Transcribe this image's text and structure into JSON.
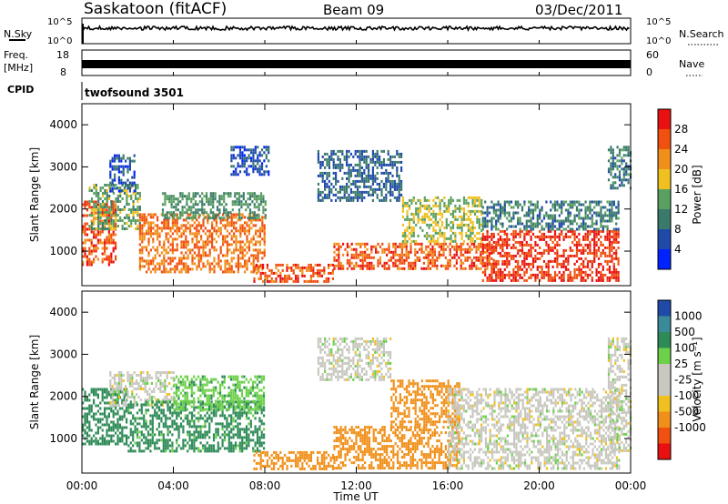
{
  "header": {
    "station": "Saskatoon (fitACF)",
    "beam": "Beam 09",
    "date": "03/Dec/2011"
  },
  "noise_panel": {
    "left_label": "N.Sky",
    "right_label": "N.Search",
    "left_ticks": [
      "10^5",
      "10^0"
    ],
    "right_ticks": [
      "10^5",
      "10^0"
    ]
  },
  "freq_panel": {
    "left_label_1": "Freq.",
    "left_label_2": "[MHz]",
    "right_label": "Nave",
    "left_ticks": [
      "18",
      "8"
    ],
    "right_ticks": [
      "60",
      "0"
    ]
  },
  "cpid_panel": {
    "label": "CPID",
    "value": "twofsound 3501"
  },
  "x_axis": {
    "label": "Time UT",
    "ticks": [
      "00:00",
      "04:00",
      "08:00",
      "12:00",
      "16:00",
      "20:00",
      "00:00"
    ]
  },
  "colorbars": {
    "power": {
      "label": "Power [dB]",
      "ticks": [
        "28",
        "24",
        "20",
        "16",
        "12",
        "8",
        "4"
      ]
    },
    "velocity": {
      "label": "Velocity [m s⁻¹]",
      "ticks": [
        "1000",
        "500",
        "100",
        "25",
        "-25",
        "-100",
        "-500",
        "-1000"
      ]
    }
  },
  "colors": {
    "power_scale": [
      "#0022ff",
      "#1f4aa8",
      "#3a7a6a",
      "#5aa060",
      "#f0c020",
      "#f0901a",
      "#f05010",
      "#e81010"
    ],
    "velocity_scale": [
      "#e81010",
      "#f05010",
      "#f0901a",
      "#f0c020",
      "#c8c8c0",
      "#c8c8c0",
      "#6cd04a",
      "#2e8b57",
      "#3a8a9a",
      "#1f4aa8"
    ]
  },
  "chart_data": [
    {
      "type": "heatmap",
      "title": "",
      "xlabel": "",
      "ylabel": "Slant Range [km]",
      "xlim": [
        0,
        24
      ],
      "ylim": [
        180,
        4500
      ],
      "y_ticks": [
        1000,
        2000,
        3000,
        4000
      ],
      "value_label": "Power [dB]",
      "regions": [
        {
          "t_start": 0.0,
          "t_end": 1.5,
          "r_min": 700,
          "r_max": 2200,
          "value": 26
        },
        {
          "t_start": 0.3,
          "t_end": 2.5,
          "r_min": 1500,
          "r_max": 2600,
          "value": 14
        },
        {
          "t_start": 1.2,
          "t_end": 2.3,
          "r_min": 2400,
          "r_max": 3300,
          "value": 6
        },
        {
          "t_start": 2.5,
          "t_end": 8.0,
          "r_min": 500,
          "r_max": 1900,
          "value": 24
        },
        {
          "t_start": 3.5,
          "t_end": 8.0,
          "r_min": 1800,
          "r_max": 2400,
          "value": 12
        },
        {
          "t_start": 6.5,
          "t_end": 8.2,
          "r_min": 2800,
          "r_max": 3500,
          "value": 6
        },
        {
          "t_start": 7.5,
          "t_end": 11.0,
          "r_min": 250,
          "r_max": 700,
          "value": 26
        },
        {
          "t_start": 10.3,
          "t_end": 14.0,
          "r_min": 2200,
          "r_max": 3400,
          "value": 8
        },
        {
          "t_start": 11.0,
          "t_end": 18.0,
          "r_min": 600,
          "r_max": 1200,
          "value": 26
        },
        {
          "t_start": 14.0,
          "t_end": 17.5,
          "r_min": 1200,
          "r_max": 2300,
          "value": 16
        },
        {
          "t_start": 17.5,
          "t_end": 23.5,
          "r_min": 300,
          "r_max": 1500,
          "value": 28
        },
        {
          "t_start": 17.5,
          "t_end": 23.5,
          "r_min": 1500,
          "r_max": 2200,
          "value": 10
        },
        {
          "t_start": 23.0,
          "t_end": 24.0,
          "r_min": 2500,
          "r_max": 3500,
          "value": 10
        }
      ]
    },
    {
      "type": "heatmap",
      "title": "",
      "xlabel": "Time UT",
      "ylabel": "Slant Range [km]",
      "xlim": [
        0,
        24
      ],
      "ylim": [
        180,
        4500
      ],
      "y_ticks": [
        1000,
        2000,
        3000,
        4000
      ],
      "value_label": "Velocity [m s⁻¹]",
      "regions": [
        {
          "t_start": 0.0,
          "t_end": 2.0,
          "r_min": 900,
          "r_max": 2200,
          "value": 200
        },
        {
          "t_start": 1.2,
          "t_end": 4.0,
          "r_min": 1800,
          "r_max": 2600,
          "value": 0
        },
        {
          "t_start": 2.0,
          "t_end": 8.0,
          "r_min": 700,
          "r_max": 1900,
          "value": 150
        },
        {
          "t_start": 4.0,
          "t_end": 8.0,
          "r_min": 1700,
          "r_max": 2500,
          "value": 80
        },
        {
          "t_start": 7.5,
          "t_end": 11.0,
          "r_min": 250,
          "r_max": 700,
          "value": -300
        },
        {
          "t_start": 10.3,
          "t_end": 13.5,
          "r_min": 2400,
          "r_max": 3400,
          "value": 0
        },
        {
          "t_start": 11.0,
          "t_end": 16.5,
          "r_min": 300,
          "r_max": 1300,
          "value": -200
        },
        {
          "t_start": 13.5,
          "t_end": 16.5,
          "r_min": 1300,
          "r_max": 2400,
          "value": -350
        },
        {
          "t_start": 16.0,
          "t_end": 23.5,
          "r_min": 300,
          "r_max": 2200,
          "value": 0
        },
        {
          "t_start": 23.0,
          "t_end": 24.0,
          "r_min": 700,
          "r_max": 3400,
          "value": 0
        }
      ]
    }
  ]
}
